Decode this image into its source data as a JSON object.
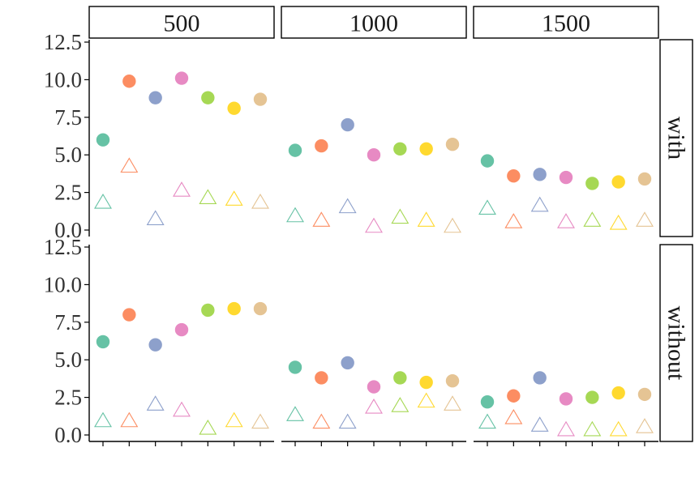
{
  "chart_data": {
    "type": "scatter",
    "facets": {
      "columns": [
        "500",
        "1000",
        "1500"
      ],
      "rows": [
        "with",
        "without"
      ]
    },
    "y_ticks": [
      "0.0",
      "2.5",
      "5.0",
      "7.5",
      "10.0",
      "12.5"
    ],
    "ylim": [
      0,
      12.5
    ],
    "groups": 7,
    "colors": [
      "#66c2a5",
      "#fc8d62",
      "#8da0cb",
      "#e78ac3",
      "#a6d854",
      "#ffd92f",
      "#e5c494"
    ],
    "series": [
      {
        "shape": "filled-circle",
        "panels": {
          "with": {
            "500": [
              6.0,
              9.9,
              8.8,
              10.1,
              8.8,
              8.1,
              8.7
            ],
            "1000": [
              5.3,
              5.6,
              7.0,
              5.0,
              5.4,
              5.4,
              5.7
            ],
            "1500": [
              4.6,
              3.6,
              3.7,
              3.5,
              3.1,
              3.2,
              3.4
            ]
          },
          "without": {
            "500": [
              6.2,
              8.0,
              6.0,
              7.0,
              8.3,
              8.4,
              8.4
            ],
            "1000": [
              4.5,
              3.8,
              4.8,
              3.2,
              3.8,
              3.5,
              3.6
            ],
            "1500": [
              2.2,
              2.6,
              3.8,
              2.4,
              2.5,
              2.8,
              2.7
            ]
          }
        }
      },
      {
        "shape": "open-triangle",
        "panels": {
          "with": {
            "500": [
              1.8,
              4.2,
              0.7,
              2.6,
              2.1,
              2.0,
              1.8
            ],
            "1000": [
              0.9,
              0.6,
              1.5,
              0.2,
              0.8,
              0.6,
              0.2
            ],
            "1500": [
              1.4,
              0.5,
              1.6,
              0.5,
              0.6,
              0.4,
              0.6
            ]
          },
          "without": {
            "500": [
              0.9,
              0.9,
              2.0,
              1.6,
              0.4,
              0.9,
              0.8
            ],
            "1000": [
              1.3,
              0.8,
              0.8,
              1.8,
              1.9,
              2.2,
              2.0
            ],
            "1500": [
              0.8,
              1.1,
              0.6,
              0.3,
              0.3,
              0.3,
              0.5
            ]
          }
        }
      }
    ],
    "grid": false,
    "legend": "none",
    "title": "",
    "xlabel": "",
    "ylabel": ""
  }
}
